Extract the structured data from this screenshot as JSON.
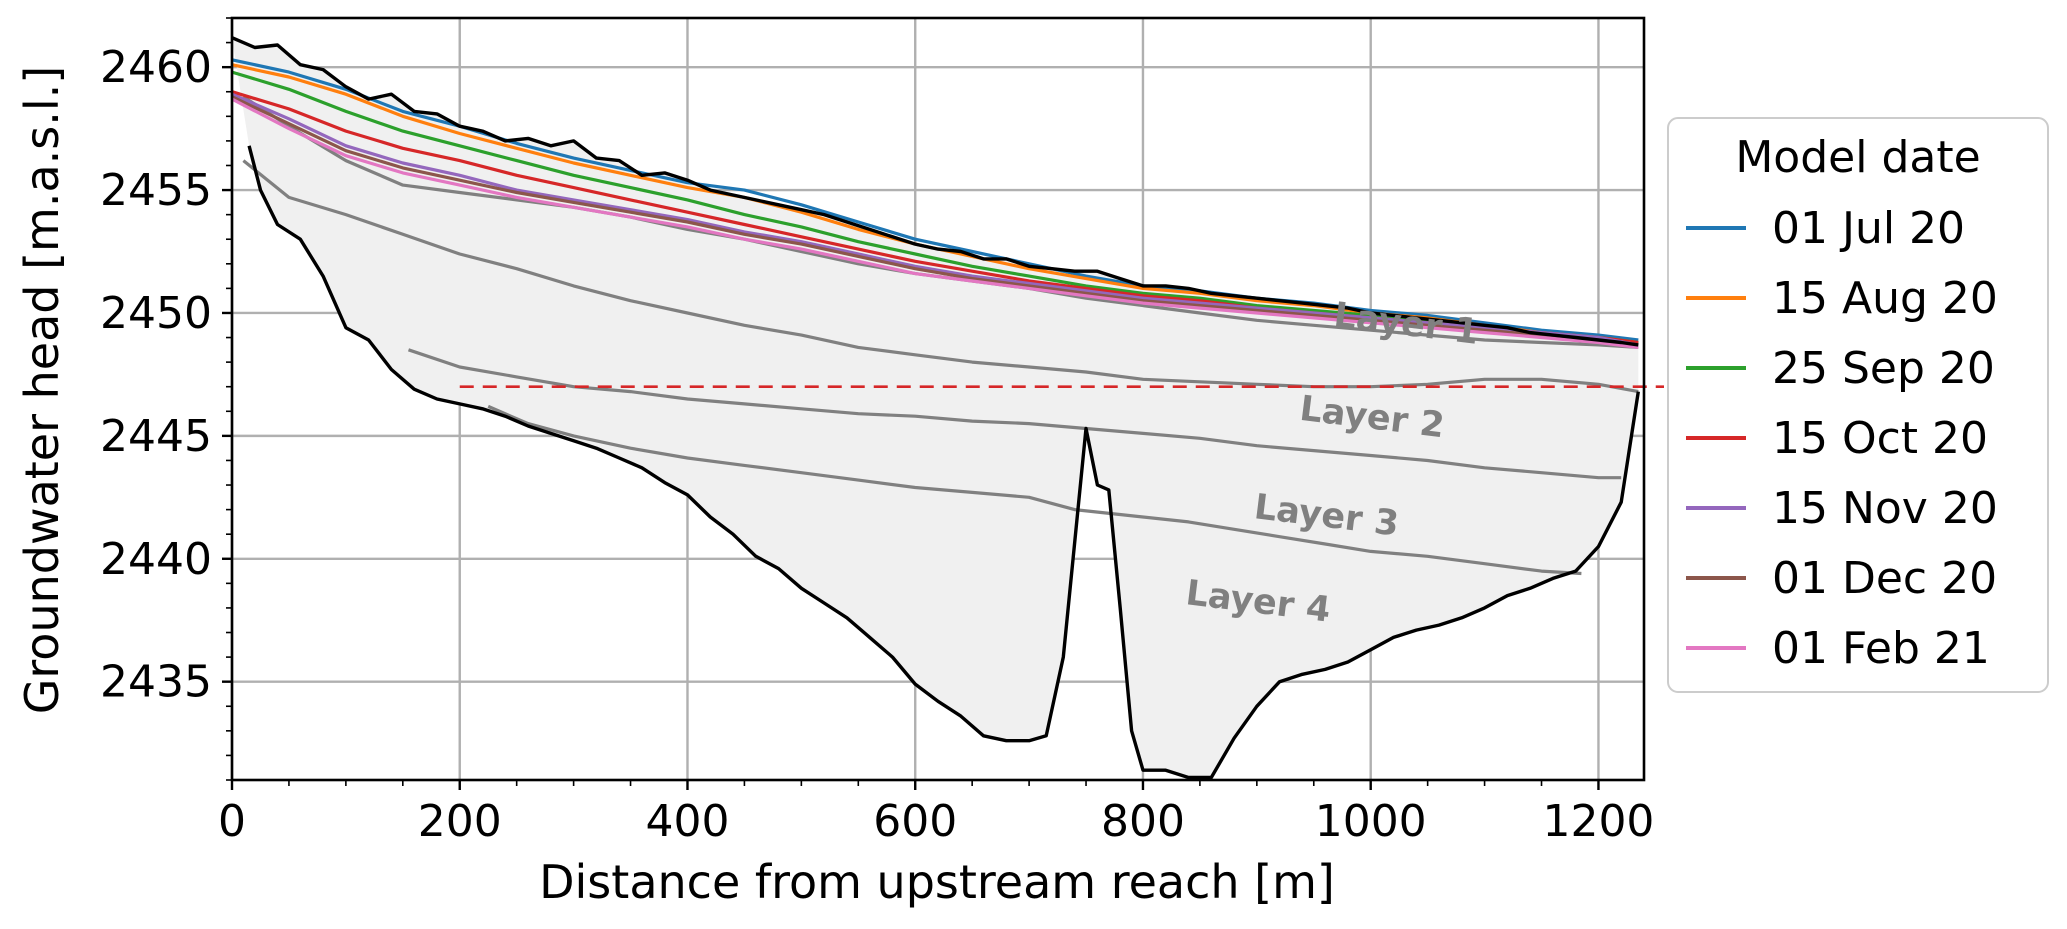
{
  "chart_data": {
    "type": "line",
    "xlabel": "Distance from upstream reach [m]",
    "ylabel": "Groundwater head [m.a.s.l.]",
    "xlim": [
      0,
      1240
    ],
    "ylim": [
      2431,
      2462
    ],
    "xticks": [
      0,
      200,
      400,
      600,
      800,
      1000,
      1200
    ],
    "yticks": [
      2435,
      2440,
      2445,
      2450,
      2455,
      2460
    ],
    "grid": true,
    "legend": {
      "title": "Model date",
      "placement": "outside-right"
    },
    "reference_line": {
      "y": 2447,
      "color": "#d62728",
      "style": "dashed"
    },
    "layer_labels": [
      {
        "text": "Layer 1",
        "x": 1030,
        "y": 2449.1
      },
      {
        "text": "Layer 2",
        "x": 1000,
        "y": 2445.3
      },
      {
        "text": "Layer 3",
        "x": 960,
        "y": 2441.3
      },
      {
        "text": "Layer 4",
        "x": 900,
        "y": 2437.8
      }
    ],
    "ground_surface": {
      "x": [
        0,
        20,
        40,
        60,
        80,
        100,
        120,
        140,
        160,
        180,
        200,
        220,
        240,
        260,
        280,
        300,
        320,
        340,
        360,
        380,
        400,
        420,
        440,
        460,
        480,
        500,
        520,
        540,
        560,
        580,
        600,
        620,
        640,
        660,
        680,
        700,
        720,
        740,
        760,
        780,
        800,
        820,
        840,
        860,
        880,
        900,
        920,
        940,
        960,
        980,
        1000,
        1020,
        1040,
        1060,
        1080,
        1100,
        1120,
        1140,
        1160,
        1180,
        1200,
        1220,
        1235
      ],
      "y": [
        2461.2,
        2460.8,
        2460.9,
        2460.1,
        2459.9,
        2459.2,
        2458.7,
        2458.9,
        2458.2,
        2458.1,
        2457.6,
        2457.4,
        2457.0,
        2457.1,
        2456.8,
        2457.0,
        2456.3,
        2456.2,
        2455.6,
        2455.7,
        2455.4,
        2455.0,
        2454.8,
        2454.6,
        2454.4,
        2454.2,
        2454.0,
        2453.7,
        2453.4,
        2453.1,
        2452.8,
        2452.6,
        2452.5,
        2452.2,
        2452.2,
        2451.9,
        2451.8,
        2451.7,
        2451.7,
        2451.4,
        2451.1,
        2451.1,
        2451.0,
        2450.8,
        2450.7,
        2450.6,
        2450.5,
        2450.4,
        2450.3,
        2450.2,
        2450.0,
        2449.9,
        2449.8,
        2449.7,
        2449.6,
        2449.5,
        2449.4,
        2449.2,
        2449.1,
        2449.0,
        2448.9,
        2448.8,
        2448.7
      ]
    },
    "bedrock": {
      "x": [
        15,
        25,
        40,
        60,
        80,
        100,
        120,
        140,
        160,
        180,
        200,
        220,
        240,
        260,
        280,
        300,
        320,
        340,
        360,
        380,
        400,
        420,
        440,
        460,
        480,
        500,
        520,
        540,
        560,
        580,
        600,
        620,
        640,
        660,
        680,
        700,
        715,
        730,
        750,
        760,
        770,
        780,
        790,
        800,
        820,
        840,
        860,
        880,
        900,
        920,
        940,
        960,
        980,
        1000,
        1020,
        1040,
        1060,
        1080,
        1100,
        1120,
        1140,
        1160,
        1180,
        1200,
        1220,
        1235
      ],
      "y": [
        2456.8,
        2455.0,
        2453.6,
        2453.0,
        2451.5,
        2449.4,
        2448.9,
        2447.7,
        2446.9,
        2446.5,
        2446.3,
        2446.1,
        2445.8,
        2445.4,
        2445.1,
        2444.8,
        2444.5,
        2444.1,
        2443.7,
        2443.1,
        2442.6,
        2441.7,
        2441.0,
        2440.1,
        2439.6,
        2438.8,
        2438.2,
        2437.6,
        2436.8,
        2436.0,
        2434.9,
        2434.2,
        2433.6,
        2432.8,
        2432.6,
        2432.6,
        2432.8,
        2436.0,
        2445.3,
        2443.0,
        2442.8,
        2438.0,
        2433.0,
        2431.4,
        2431.4,
        2431.1,
        2431.1,
        2432.7,
        2434.0,
        2435.0,
        2435.3,
        2435.5,
        2435.8,
        2436.3,
        2436.8,
        2437.1,
        2437.3,
        2437.6,
        2438.0,
        2438.5,
        2438.8,
        2439.2,
        2439.5,
        2440.5,
        2442.3,
        2446.8
      ]
    },
    "layer_boundaries": [
      {
        "x": [
          10,
          50,
          100,
          150,
          200,
          250,
          300,
          350,
          400,
          450,
          500,
          550,
          600,
          650,
          700,
          750,
          800,
          850,
          900,
          950,
          1000,
          1050,
          1100,
          1150,
          1200,
          1235
        ],
        "y": [
          2458.8,
          2457.6,
          2456.2,
          2455.2,
          2454.9,
          2454.6,
          2454.3,
          2453.9,
          2453.4,
          2453.0,
          2452.5,
          2452.0,
          2451.6,
          2451.3,
          2451.0,
          2450.6,
          2450.3,
          2450.0,
          2449.7,
          2449.5,
          2449.3,
          2449.1,
          2448.9,
          2448.8,
          2448.7,
          2448.6
        ]
      },
      {
        "x": [
          10,
          50,
          100,
          150,
          200,
          250,
          300,
          350,
          400,
          450,
          500,
          550,
          600,
          650,
          700,
          750,
          800,
          850,
          900,
          950,
          1000,
          1050,
          1100,
          1150,
          1200,
          1235
        ],
        "y": [
          2456.2,
          2454.7,
          2454.0,
          2453.2,
          2452.4,
          2451.8,
          2451.1,
          2450.5,
          2450.0,
          2449.5,
          2449.1,
          2448.6,
          2448.3,
          2448.0,
          2447.8,
          2447.6,
          2447.3,
          2447.2,
          2447.1,
          2447.0,
          2447.0,
          2447.1,
          2447.3,
          2447.3,
          2447.1,
          2446.8
        ]
      },
      {
        "x": [
          155,
          200,
          250,
          300,
          350,
          400,
          450,
          500,
          550,
          600,
          650,
          700,
          750,
          800,
          850,
          900,
          950,
          1000,
          1050,
          1100,
          1150,
          1200,
          1220
        ],
        "y": [
          2448.5,
          2447.8,
          2447.4,
          2447.0,
          2446.8,
          2446.5,
          2446.3,
          2446.1,
          2445.9,
          2445.8,
          2445.6,
          2445.5,
          2445.3,
          2445.1,
          2444.9,
          2444.6,
          2444.4,
          2444.2,
          2444.0,
          2443.7,
          2443.5,
          2443.3,
          2443.3
        ]
      },
      {
        "x": [
          225,
          260,
          300,
          350,
          400,
          450,
          500,
          550,
          600,
          650,
          700,
          740,
          800,
          840,
          880,
          920,
          960,
          1000,
          1050,
          1100,
          1150,
          1185
        ],
        "y": [
          2446.2,
          2445.5,
          2445.0,
          2444.5,
          2444.1,
          2443.8,
          2443.5,
          2443.2,
          2442.9,
          2442.7,
          2442.5,
          2442.0,
          2441.7,
          2441.5,
          2441.2,
          2440.9,
          2440.6,
          2440.3,
          2440.1,
          2439.8,
          2439.5,
          2439.4
        ]
      }
    ],
    "x": [
      0,
      50,
      100,
      150,
      200,
      250,
      300,
      350,
      400,
      450,
      500,
      550,
      600,
      650,
      700,
      750,
      800,
      850,
      900,
      950,
      1000,
      1050,
      1100,
      1150,
      1200,
      1235
    ],
    "series": [
      {
        "name": "01 Jul 20",
        "color": "#1f77b4",
        "values": [
          2460.3,
          2459.8,
          2459.1,
          2458.2,
          2457.6,
          2456.9,
          2456.3,
          2455.8,
          2455.3,
          2455.0,
          2454.4,
          2453.7,
          2453.0,
          2452.5,
          2452.0,
          2451.5,
          2451.1,
          2450.9,
          2450.6,
          2450.4,
          2450.1,
          2449.9,
          2449.6,
          2449.3,
          2449.1,
          2448.9
        ]
      },
      {
        "name": "15 Aug 20",
        "color": "#ff7f0e",
        "values": [
          2460.1,
          2459.6,
          2458.9,
          2458.0,
          2457.3,
          2456.7,
          2456.1,
          2455.6,
          2455.1,
          2454.7,
          2454.1,
          2453.4,
          2452.8,
          2452.3,
          2451.8,
          2451.4,
          2451.0,
          2450.8,
          2450.5,
          2450.3,
          2450.0,
          2449.8,
          2449.5,
          2449.2,
          2449.0,
          2448.8
        ]
      },
      {
        "name": "25 Sep 20",
        "color": "#2ca02c",
        "values": [
          2459.8,
          2459.1,
          2458.2,
          2457.4,
          2456.8,
          2456.2,
          2455.6,
          2455.1,
          2454.6,
          2454.0,
          2453.5,
          2452.9,
          2452.4,
          2451.9,
          2451.5,
          2451.1,
          2450.8,
          2450.6,
          2450.3,
          2450.1,
          2449.9,
          2449.7,
          2449.4,
          2449.2,
          2449.0,
          2448.8
        ]
      },
      {
        "name": "15 Oct 20",
        "color": "#d62728",
        "values": [
          2459.0,
          2458.3,
          2457.4,
          2456.7,
          2456.2,
          2455.6,
          2455.1,
          2454.6,
          2454.1,
          2453.6,
          2453.1,
          2452.6,
          2452.1,
          2451.7,
          2451.3,
          2451.0,
          2450.7,
          2450.5,
          2450.2,
          2450.0,
          2449.8,
          2449.6,
          2449.4,
          2449.2,
          2449.0,
          2448.8
        ]
      },
      {
        "name": "15 Nov 20",
        "color": "#9467bd",
        "values": [
          2458.9,
          2457.9,
          2456.8,
          2456.1,
          2455.6,
          2455.0,
          2454.6,
          2454.2,
          2453.8,
          2453.3,
          2452.9,
          2452.4,
          2451.9,
          2451.5,
          2451.2,
          2450.9,
          2450.6,
          2450.4,
          2450.2,
          2450.0,
          2449.8,
          2449.6,
          2449.4,
          2449.2,
          2449.0,
          2448.7
        ]
      },
      {
        "name": "01 Dec 20",
        "color": "#8c564b",
        "values": [
          2458.8,
          2457.7,
          2456.6,
          2455.9,
          2455.4,
          2454.9,
          2454.5,
          2454.1,
          2453.7,
          2453.2,
          2452.8,
          2452.3,
          2451.8,
          2451.4,
          2451.1,
          2450.8,
          2450.5,
          2450.3,
          2450.1,
          2449.9,
          2449.7,
          2449.5,
          2449.3,
          2449.1,
          2448.9,
          2448.7
        ]
      },
      {
        "name": "01 Feb 21",
        "color": "#e377c2",
        "values": [
          2458.7,
          2457.5,
          2456.4,
          2455.7,
          2455.2,
          2454.7,
          2454.3,
          2453.9,
          2453.5,
          2453.0,
          2452.6,
          2452.1,
          2451.6,
          2451.3,
          2451.0,
          2450.7,
          2450.4,
          2450.2,
          2450.0,
          2449.8,
          2449.6,
          2449.4,
          2449.2,
          2449.0,
          2448.8,
          2448.6
        ]
      }
    ]
  }
}
